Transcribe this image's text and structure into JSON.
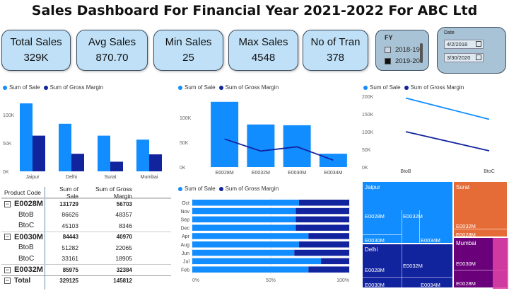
{
  "title": "Sales Dashboard For Financial Year 2021-2022 For ABC Ltd",
  "kpis": [
    {
      "label": "Total Sales",
      "value": "329K"
    },
    {
      "label": "Avg Sales",
      "value": "870.70"
    },
    {
      "label": "Min Sales",
      "value": "25"
    },
    {
      "label": "Max Sales",
      "value": "4548"
    },
    {
      "label": "No of Tran",
      "value": "378"
    }
  ],
  "fy_slicer": {
    "label": "FY",
    "options": [
      {
        "label": "2018-19",
        "checked": false
      },
      {
        "label": "2019-20",
        "checked": true
      }
    ]
  },
  "date_slicer": {
    "label": "Date",
    "start": "4/2/2018",
    "end": "3/30/2020"
  },
  "legend": {
    "sale": "Sum of Sale",
    "margin": "Sum of Gross Margin"
  },
  "colors": {
    "sale": "#118dff",
    "margin": "#12239e",
    "kpi_bg": "#bfe0f7"
  },
  "chart_data": [
    {
      "type": "bar",
      "categories": [
        "Jaipur",
        "Delhi",
        "Surat",
        "Mumbai"
      ],
      "series": [
        {
          "name": "Sum of Sale",
          "values": [
            120000,
            84000,
            63000,
            56000
          ]
        },
        {
          "name": "Sum of Gross Margin",
          "values": [
            63000,
            31000,
            17000,
            30000
          ]
        }
      ],
      "yticks": [
        "100K",
        "50K",
        "0K"
      ],
      "ylim": [
        0,
        130000
      ]
    },
    {
      "type": "bar",
      "categories": [
        "E0028M",
        "E0032M",
        "E0030M",
        "E0034M"
      ],
      "series": [
        {
          "name": "Sum of Sale",
          "values": [
            131729,
            85975,
            84443,
            27000
          ],
          "kind": "bar"
        },
        {
          "name": "Sum of Gross Margin",
          "values": [
            56703,
            32384,
            40970,
            14000
          ],
          "kind": "line"
        }
      ],
      "yticks": [
        "100K",
        "50K",
        "0K"
      ],
      "ylim": [
        0,
        140000
      ]
    },
    {
      "type": "line",
      "categories": [
        "BtoB",
        "BtoC"
      ],
      "series": [
        {
          "name": "Sum of Sale",
          "values": [
            195000,
            135000
          ]
        },
        {
          "name": "Sum of Gross Margin",
          "values": [
            100000,
            46000
          ]
        }
      ],
      "yticks": [
        "200K",
        "150K",
        "100K",
        "50K",
        "0K"
      ],
      "ylim": [
        0,
        200000
      ]
    },
    {
      "type": "bar",
      "orientation": "horizontal-100pct-stacked",
      "categories": [
        "Oct",
        "Nov",
        "Sep",
        "Dec",
        "Apr",
        "Aug",
        "Jun",
        "Jul",
        "Feb"
      ],
      "series": [
        {
          "name": "Sum of Sale",
          "values": [
            68,
            66,
            66,
            66,
            74,
            68,
            65,
            82,
            74
          ]
        },
        {
          "name": "Sum of Gross Margin",
          "values": [
            32,
            34,
            34,
            34,
            26,
            32,
            35,
            18,
            26
          ]
        }
      ],
      "xticks": [
        "0%",
        "50%",
        "100%"
      ]
    },
    {
      "type": "treemap",
      "groups": [
        {
          "name": "Jaipur",
          "color": "#118dff",
          "items": [
            "E0028M",
            "E0032M",
            "E0030M",
            "E0034M"
          ]
        },
        {
          "name": "Surat",
          "color": "#e66c37",
          "items": [
            "E0032M",
            "E0028M"
          ]
        },
        {
          "name": "Delhi",
          "color": "#12239e",
          "items": [
            "E0032M",
            "E0028M",
            "E0030M",
            "E0034M"
          ]
        },
        {
          "name": "Mumbai",
          "color": "#6b007b",
          "items": [
            "E0030M",
            "E0028M"
          ]
        }
      ]
    }
  ],
  "table": {
    "headers": [
      "Product Code",
      "Sum of Sale",
      "Sum of Gross Margin"
    ],
    "rows": [
      {
        "type": "grp",
        "name": "E0028M",
        "sale": "131729",
        "margin": "56703"
      },
      {
        "type": "sub",
        "name": "BtoB",
        "sale": "86626",
        "margin": "48357"
      },
      {
        "type": "sub",
        "name": "BtoC",
        "sale": "45103",
        "margin": "8346"
      },
      {
        "type": "grp",
        "name": "E0030M",
        "sale": "84443",
        "margin": "40970"
      },
      {
        "type": "sub",
        "name": "BtoB",
        "sale": "51282",
        "margin": "22065"
      },
      {
        "type": "sub",
        "name": "BtoC",
        "sale": "33161",
        "margin": "18905"
      },
      {
        "type": "grp",
        "name": "E0032M",
        "sale": "85975",
        "margin": "32384"
      },
      {
        "type": "tot",
        "name": "Total",
        "sale": "329125",
        "margin": "145812"
      }
    ]
  }
}
